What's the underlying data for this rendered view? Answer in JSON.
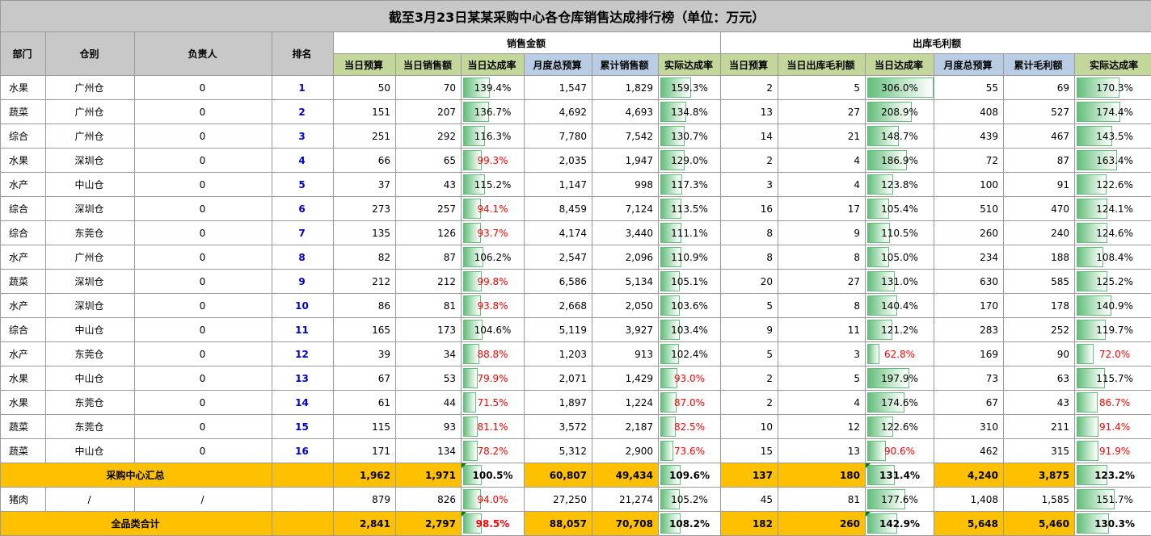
{
  "title": "截至3月23日某某采购中心各仓库销售达成排行榜（单位：万元）",
  "groups": {
    "sales": "销售金额",
    "profit": "出库毛利额"
  },
  "headers": {
    "dept": "部门",
    "warehouse": "仓别",
    "owner": "负责人",
    "rank": "排名",
    "day_budget": "当日预算",
    "day_sales": "当日销售额",
    "day_rate": "当日达成率",
    "month_budget": "月度总预算",
    "cum_sales": "累计销售额",
    "actual_rate": "实际达成率",
    "p_day_budget": "当日预算",
    "p_day_profit": "当日出库毛利额",
    "p_day_rate": "当日达成率",
    "p_month_budget": "月度总预算",
    "p_cum_profit": "累计毛利额",
    "p_actual_rate": "实际达成率"
  },
  "rows": [
    {
      "dept": "水果",
      "wh": "广州仓",
      "owner": "0",
      "rank": "1",
      "sb": "50",
      "ss": "70",
      "sr": "139.4%",
      "sr_v": 1.394,
      "mb": "1,547",
      "cs": "1,829",
      "ar": "159.3%",
      "ar_v": 1.593,
      "pb": "2",
      "pp": "5",
      "pr": "306.0%",
      "pr_v": 3.06,
      "pmb": "55",
      "pcp": "69",
      "par": "170.3%",
      "par_v": 1.703
    },
    {
      "dept": "蔬菜",
      "wh": "广州仓",
      "owner": "0",
      "rank": "2",
      "sb": "151",
      "ss": "207",
      "sr": "136.7%",
      "sr_v": 1.367,
      "mb": "4,692",
      "cs": "4,693",
      "ar": "134.8%",
      "ar_v": 1.348,
      "pb": "13",
      "pp": "27",
      "pr": "208.9%",
      "pr_v": 2.089,
      "pmb": "408",
      "pcp": "527",
      "par": "174.4%",
      "par_v": 1.744
    },
    {
      "dept": "综合",
      "wh": "广州仓",
      "owner": "0",
      "rank": "3",
      "sb": "251",
      "ss": "292",
      "sr": "116.3%",
      "sr_v": 1.163,
      "mb": "7,780",
      "cs": "7,542",
      "ar": "130.7%",
      "ar_v": 1.307,
      "pb": "14",
      "pp": "21",
      "pr": "148.7%",
      "pr_v": 1.487,
      "pmb": "439",
      "pcp": "467",
      "par": "143.5%",
      "par_v": 1.435
    },
    {
      "dept": "水果",
      "wh": "深圳仓",
      "owner": "0",
      "rank": "4",
      "sb": "66",
      "ss": "65",
      "sr": "99.3%",
      "sr_v": 0.993,
      "mb": "2,035",
      "cs": "1,947",
      "ar": "129.0%",
      "ar_v": 1.29,
      "pb": "2",
      "pp": "4",
      "pr": "186.9%",
      "pr_v": 1.869,
      "pmb": "72",
      "pcp": "87",
      "par": "163.4%",
      "par_v": 1.634
    },
    {
      "dept": "水产",
      "wh": "中山仓",
      "owner": "0",
      "rank": "5",
      "sb": "37",
      "ss": "43",
      "sr": "115.2%",
      "sr_v": 1.152,
      "mb": "1,147",
      "cs": "998",
      "ar": "117.3%",
      "ar_v": 1.173,
      "pb": "3",
      "pp": "4",
      "pr": "123.8%",
      "pr_v": 1.238,
      "pmb": "100",
      "pcp": "91",
      "par": "122.6%",
      "par_v": 1.226
    },
    {
      "dept": "综合",
      "wh": "深圳仓",
      "owner": "0",
      "rank": "6",
      "sb": "273",
      "ss": "257",
      "sr": "94.1%",
      "sr_v": 0.941,
      "mb": "8,459",
      "cs": "7,124",
      "ar": "113.5%",
      "ar_v": 1.135,
      "pb": "16",
      "pp": "17",
      "pr": "105.4%",
      "pr_v": 1.054,
      "pmb": "510",
      "pcp": "470",
      "par": "124.1%",
      "par_v": 1.241
    },
    {
      "dept": "综合",
      "wh": "东莞仓",
      "owner": "0",
      "rank": "7",
      "sb": "135",
      "ss": "126",
      "sr": "93.7%",
      "sr_v": 0.937,
      "mb": "4,174",
      "cs": "3,440",
      "ar": "111.1%",
      "ar_v": 1.111,
      "pb": "8",
      "pp": "9",
      "pr": "110.5%",
      "pr_v": 1.105,
      "pmb": "260",
      "pcp": "240",
      "par": "124.6%",
      "par_v": 1.246
    },
    {
      "dept": "水产",
      "wh": "广州仓",
      "owner": "0",
      "rank": "8",
      "sb": "82",
      "ss": "87",
      "sr": "106.2%",
      "sr_v": 1.062,
      "mb": "2,547",
      "cs": "2,096",
      "ar": "110.9%",
      "ar_v": 1.109,
      "pb": "8",
      "pp": "8",
      "pr": "105.0%",
      "pr_v": 1.05,
      "pmb": "234",
      "pcp": "188",
      "par": "108.4%",
      "par_v": 1.084
    },
    {
      "dept": "蔬菜",
      "wh": "深圳仓",
      "owner": "0",
      "rank": "9",
      "sb": "212",
      "ss": "212",
      "sr": "99.8%",
      "sr_v": 0.998,
      "mb": "6,586",
      "cs": "5,134",
      "ar": "105.1%",
      "ar_v": 1.051,
      "pb": "20",
      "pp": "27",
      "pr": "131.0%",
      "pr_v": 1.31,
      "pmb": "630",
      "pcp": "585",
      "par": "125.2%",
      "par_v": 1.252
    },
    {
      "dept": "水产",
      "wh": "深圳仓",
      "owner": "0",
      "rank": "10",
      "sb": "86",
      "ss": "81",
      "sr": "93.8%",
      "sr_v": 0.938,
      "mb": "2,668",
      "cs": "2,050",
      "ar": "103.6%",
      "ar_v": 1.036,
      "pb": "5",
      "pp": "8",
      "pr": "140.4%",
      "pr_v": 1.404,
      "pmb": "170",
      "pcp": "178",
      "par": "140.9%",
      "par_v": 1.409
    },
    {
      "dept": "综合",
      "wh": "中山仓",
      "owner": "0",
      "rank": "11",
      "sb": "165",
      "ss": "173",
      "sr": "104.6%",
      "sr_v": 1.046,
      "mb": "5,119",
      "cs": "3,927",
      "ar": "103.4%",
      "ar_v": 1.034,
      "pb": "9",
      "pp": "11",
      "pr": "121.2%",
      "pr_v": 1.212,
      "pmb": "283",
      "pcp": "252",
      "par": "119.7%",
      "par_v": 1.197
    },
    {
      "dept": "水产",
      "wh": "东莞仓",
      "owner": "0",
      "rank": "12",
      "sb": "39",
      "ss": "34",
      "sr": "88.8%",
      "sr_v": 0.888,
      "mb": "1,203",
      "cs": "913",
      "ar": "102.4%",
      "ar_v": 1.024,
      "pb": "5",
      "pp": "3",
      "pr": "62.8%",
      "pr_v": 0.628,
      "pmb": "169",
      "pcp": "90",
      "par": "72.0%",
      "par_v": 0.72
    },
    {
      "dept": "水果",
      "wh": "中山仓",
      "owner": "0",
      "rank": "13",
      "sb": "67",
      "ss": "53",
      "sr": "79.9%",
      "sr_v": 0.799,
      "mb": "2,071",
      "cs": "1,429",
      "ar": "93.0%",
      "ar_v": 0.93,
      "pb": "2",
      "pp": "5",
      "pr": "197.9%",
      "pr_v": 1.979,
      "pmb": "73",
      "pcp": "63",
      "par": "115.7%",
      "par_v": 1.157
    },
    {
      "dept": "水果",
      "wh": "东莞仓",
      "owner": "0",
      "rank": "14",
      "sb": "61",
      "ss": "44",
      "sr": "71.5%",
      "sr_v": 0.715,
      "mb": "1,897",
      "cs": "1,224",
      "ar": "87.0%",
      "ar_v": 0.87,
      "pb": "2",
      "pp": "4",
      "pr": "174.6%",
      "pr_v": 1.746,
      "pmb": "67",
      "pcp": "43",
      "par": "86.7%",
      "par_v": 0.867
    },
    {
      "dept": "蔬菜",
      "wh": "东莞仓",
      "owner": "0",
      "rank": "15",
      "sb": "115",
      "ss": "93",
      "sr": "81.1%",
      "sr_v": 0.811,
      "mb": "3,572",
      "cs": "2,187",
      "ar": "82.5%",
      "ar_v": 0.825,
      "pb": "10",
      "pp": "12",
      "pr": "122.6%",
      "pr_v": 1.226,
      "pmb": "310",
      "pcp": "211",
      "par": "91.4%",
      "par_v": 0.914
    },
    {
      "dept": "蔬菜",
      "wh": "中山仓",
      "owner": "0",
      "rank": "16",
      "sb": "171",
      "ss": "134",
      "sr": "78.2%",
      "sr_v": 0.782,
      "mb": "5,312",
      "cs": "2,900",
      "ar": "73.6%",
      "ar_v": 0.736,
      "pb": "15",
      "pp": "13",
      "pr": "90.6%",
      "pr_v": 0.906,
      "pmb": "462",
      "pcp": "315",
      "par": "91.9%",
      "par_v": 0.919
    }
  ],
  "summary": {
    "label": "采购中心汇总",
    "sb": "1,962",
    "ss": "1,971",
    "sr": "100.5%",
    "sr_v": 1.005,
    "mb": "60,807",
    "cs": "49,434",
    "ar": "109.6%",
    "ar_v": 1.096,
    "pb": "137",
    "pp": "180",
    "pr": "131.4%",
    "pr_v": 1.314,
    "pmb": "4,240",
    "pcp": "3,875",
    "par": "123.2%",
    "par_v": 1.232
  },
  "pork": {
    "dept": "猪肉",
    "wh": "/",
    "owner": "/",
    "sb": "879",
    "ss": "826",
    "sr": "94.0%",
    "sr_v": 0.94,
    "mb": "27,250",
    "cs": "21,274",
    "ar": "105.2%",
    "ar_v": 1.052,
    "pb": "45",
    "pp": "81",
    "pr": "177.6%",
    "pr_v": 1.776,
    "pmb": "1,408",
    "pcp": "1,585",
    "par": "151.7%",
    "par_v": 1.517
  },
  "total": {
    "label": "全品类合计",
    "sb": "2,841",
    "ss": "2,797",
    "sr": "98.5%",
    "sr_v": 0.985,
    "mb": "88,057",
    "cs": "70,708",
    "ar": "108.2%",
    "ar_v": 1.082,
    "pb": "182",
    "pp": "260",
    "pr": "142.9%",
    "pr_v": 1.429,
    "pmb": "5,648",
    "pcp": "5,460",
    "par": "130.3%",
    "par_v": 1.303
  },
  "colors": {
    "bar_green": "#63be7b",
    "below_target_text": "#ff0000",
    "summary_bg": "#ffc000",
    "header_green": "#c4d79b",
    "header_blue": "#b8cce4",
    "title_bg": "#c8c8c8"
  }
}
